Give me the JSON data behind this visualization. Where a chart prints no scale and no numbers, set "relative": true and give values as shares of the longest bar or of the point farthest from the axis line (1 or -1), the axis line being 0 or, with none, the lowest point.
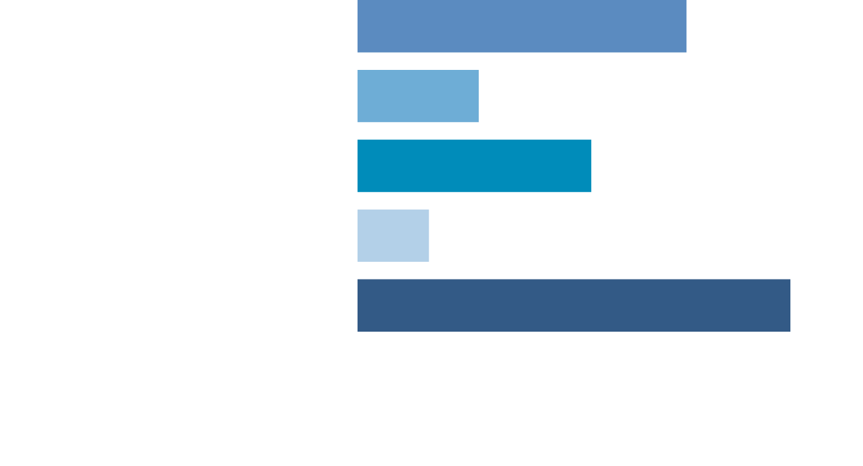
{
  "chart_data": {
    "type": "bar",
    "orientation": "horizontal",
    "relative": true,
    "categories": [
      null,
      null,
      null,
      null,
      null
    ],
    "values": [
      0.76,
      0.28,
      0.54,
      0.165,
      1
    ],
    "colors": [
      "#5b8bc0",
      "#6eadd6",
      "#008cba",
      "#b3d0e8",
      "#335a86"
    ]
  }
}
